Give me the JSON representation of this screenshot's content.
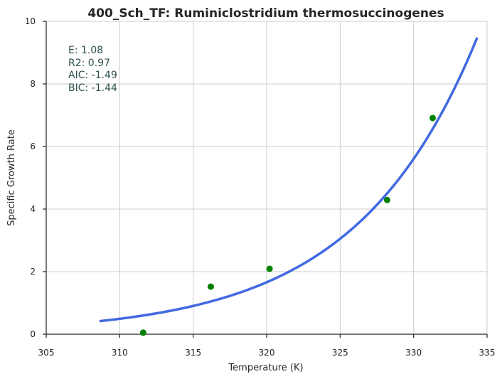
{
  "chart_data": {
    "type": "scatter",
    "title": "400_Sch_TF: Ruminiclostridium thermosuccinogenes",
    "xlabel": "Temperature (K)",
    "ylabel": "Specific Growth Rate",
    "xlim": [
      305,
      335
    ],
    "ylim": [
      0,
      10
    ],
    "x_ticks": [
      "305",
      "310",
      "315",
      "320",
      "325",
      "330",
      "335"
    ],
    "y_ticks": [
      "0",
      "2",
      "4",
      "6",
      "8",
      "10"
    ],
    "grid": true,
    "points": [
      {
        "x": 311.6,
        "y": 0.05
      },
      {
        "x": 316.2,
        "y": 1.52
      },
      {
        "x": 320.2,
        "y": 2.09
      },
      {
        "x": 328.2,
        "y": 4.29
      },
      {
        "x": 331.3,
        "y": 6.91
      }
    ],
    "fit_curve": {
      "x_start": 308.7,
      "x_end": 334.3,
      "y_start": 0.42,
      "y_end": 9.45
    },
    "annotations": [
      "E:  1.08",
      "R2:  0.97",
      "AIC: -1.49",
      "BIC: -1.44"
    ],
    "colors": {
      "points": "#008000",
      "curve": "#4169e1",
      "annotation": "#2f4f4f",
      "grid": "#cccccc",
      "axes": "#262626"
    }
  }
}
